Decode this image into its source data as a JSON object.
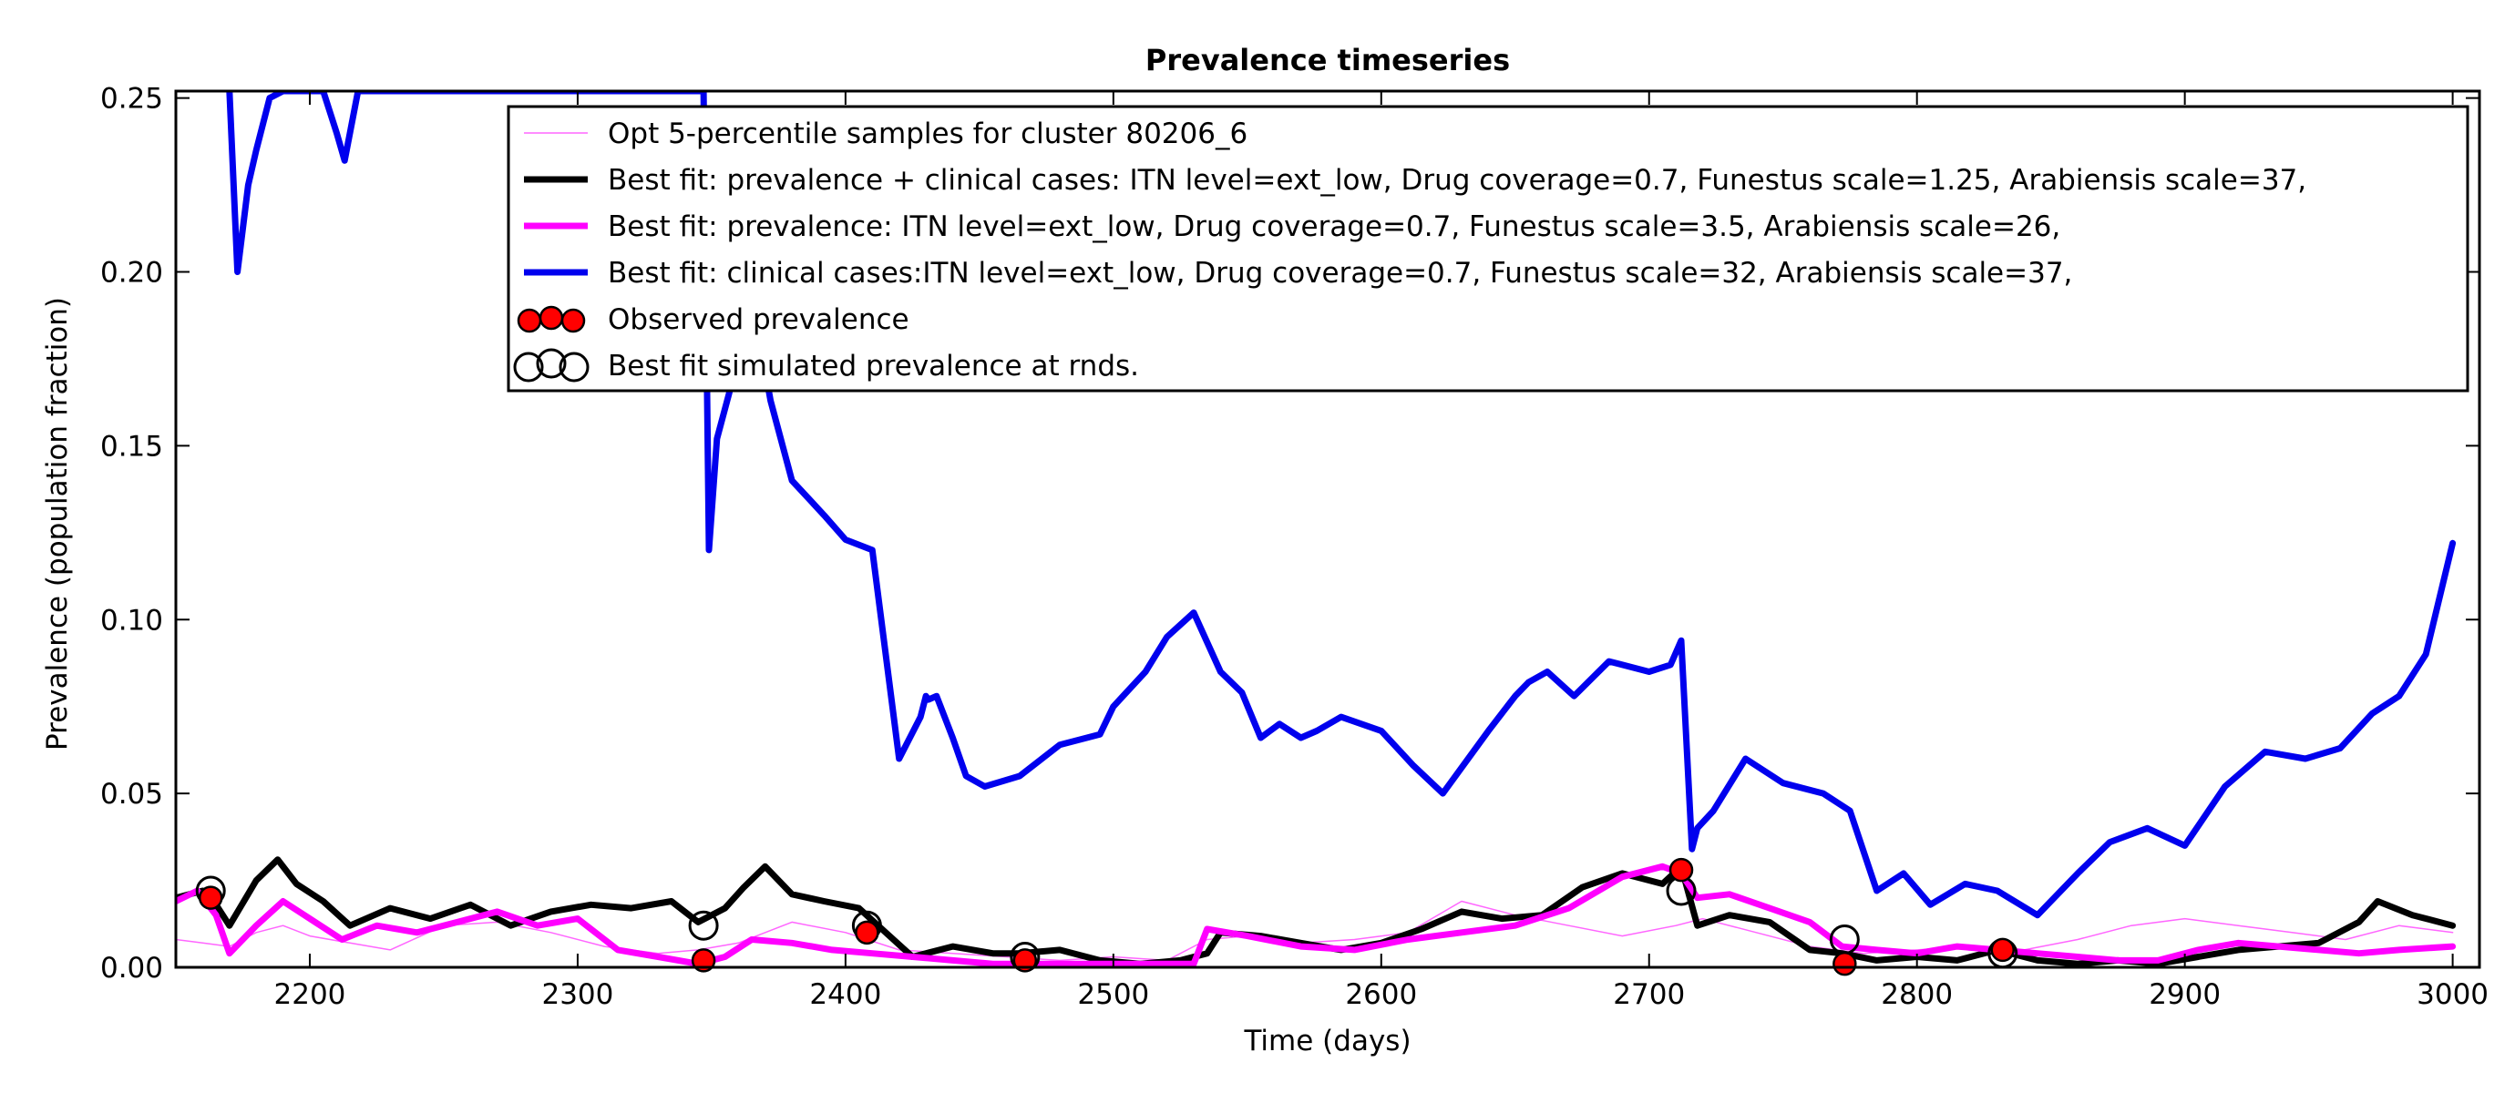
{
  "chart_data": {
    "type": "line",
    "title": "Prevalence timeseries",
    "xlabel": "Time (days)",
    "ylabel": "Prevalence (population fraction)",
    "xlim": [
      2150,
      3010
    ],
    "ylim": [
      0.0,
      0.252
    ],
    "xticks": [
      2200,
      2300,
      2400,
      2500,
      2600,
      2700,
      2800,
      2900,
      3000
    ],
    "xtick_labels": [
      "2200",
      "2300",
      "2400",
      "2500",
      "2600",
      "2700",
      "2800",
      "2900",
      "3000"
    ],
    "yticks": [
      0.0,
      0.05,
      0.1,
      0.15,
      0.2,
      0.25
    ],
    "ytick_labels": [
      "0.00",
      "0.05",
      "0.10",
      "0.15",
      "0.20",
      "0.25"
    ],
    "grid": false,
    "legend_placement": "top-right",
    "series": [
      {
        "name": "Opt 5-percentile samples for cluster 80206_6",
        "color": "#ff66ff",
        "style": "thin",
        "x": [
          2150,
          2160,
          2170,
          2180,
          2190,
          2200,
          2215,
          2230,
          2250,
          2270,
          2290,
          2310,
          2330,
          2345,
          2360,
          2380,
          2400,
          2420,
          2440,
          2460,
          2480,
          2500,
          2520,
          2535,
          2550,
          2570,
          2590,
          2610,
          2630,
          2650,
          2670,
          2690,
          2710,
          2720,
          2740,
          2760,
          2780,
          2800,
          2820,
          2840,
          2860,
          2880,
          2900,
          2920,
          2940,
          2960,
          2980,
          3000
        ],
        "y": [
          0.008,
          0.007,
          0.006,
          0.01,
          0.012,
          0.009,
          0.007,
          0.005,
          0.012,
          0.013,
          0.01,
          0.006,
          0.004,
          0.005,
          0.007,
          0.013,
          0.01,
          0.005,
          0.004,
          0.003,
          0.002,
          0.003,
          0.002,
          0.008,
          0.009,
          0.007,
          0.008,
          0.01,
          0.019,
          0.015,
          0.012,
          0.009,
          0.012,
          0.014,
          0.01,
          0.006,
          0.004,
          0.005,
          0.006,
          0.005,
          0.008,
          0.012,
          0.014,
          0.012,
          0.01,
          0.008,
          0.012,
          0.01
        ]
      },
      {
        "name": "Best fit: prevalence + clinical cases: ITN level=ext_low, Drug coverage=0.7, Funestus scale=1.25, Arabiensis scale=37,",
        "color": "#000000",
        "style": "thick",
        "x": [
          2150,
          2160,
          2165,
          2170,
          2180,
          2188,
          2195,
          2205,
          2215,
          2230,
          2245,
          2260,
          2275,
          2290,
          2305,
          2320,
          2335,
          2345,
          2355,
          2362,
          2370,
          2380,
          2392,
          2405,
          2415,
          2425,
          2440,
          2455,
          2465,
          2480,
          2495,
          2510,
          2525,
          2535,
          2540,
          2555,
          2570,
          2585,
          2600,
          2615,
          2630,
          2645,
          2660,
          2675,
          2690,
          2705,
          2712,
          2718,
          2730,
          2745,
          2760,
          2772,
          2785,
          2800,
          2815,
          2830,
          2845,
          2860,
          2875,
          2890,
          2905,
          2920,
          2935,
          2950,
          2965,
          2972,
          2985,
          3000
        ],
        "y": [
          0.02,
          0.022,
          0.018,
          0.012,
          0.025,
          0.031,
          0.024,
          0.019,
          0.012,
          0.017,
          0.014,
          0.018,
          0.012,
          0.016,
          0.018,
          0.017,
          0.019,
          0.013,
          0.017,
          0.023,
          0.029,
          0.021,
          0.019,
          0.017,
          0.01,
          0.003,
          0.006,
          0.004,
          0.004,
          0.005,
          0.002,
          0.001,
          0.002,
          0.004,
          0.01,
          0.009,
          0.007,
          0.005,
          0.007,
          0.011,
          0.016,
          0.014,
          0.015,
          0.023,
          0.027,
          0.024,
          0.029,
          0.012,
          0.015,
          0.013,
          0.005,
          0.004,
          0.002,
          0.003,
          0.002,
          0.005,
          0.002,
          0.001,
          0.002,
          0.001,
          0.003,
          0.005,
          0.006,
          0.007,
          0.013,
          0.019,
          0.015,
          0.012
        ]
      },
      {
        "name": "Best fit: prevalence: ITN level=ext_low, Drug coverage=0.7, Funestus scale=3.5, Arabiensis scale=26,",
        "color": "#ff00ff",
        "style": "thick",
        "x": [
          2150,
          2158,
          2165,
          2170,
          2180,
          2190,
          2200,
          2212,
          2225,
          2240,
          2255,
          2270,
          2285,
          2300,
          2315,
          2330,
          2345,
          2355,
          2365,
          2380,
          2395,
          2410,
          2425,
          2440,
          2455,
          2470,
          2490,
          2510,
          2530,
          2535,
          2550,
          2570,
          2590,
          2610,
          2630,
          2650,
          2670,
          2690,
          2705,
          2712,
          2718,
          2730,
          2745,
          2760,
          2772,
          2785,
          2800,
          2815,
          2830,
          2845,
          2860,
          2875,
          2890,
          2905,
          2920,
          2935,
          2950,
          2965,
          2980,
          3000
        ],
        "y": [
          0.019,
          0.022,
          0.015,
          0.004,
          0.012,
          0.019,
          0.014,
          0.008,
          0.012,
          0.01,
          0.013,
          0.016,
          0.012,
          0.014,
          0.005,
          0.003,
          0.001,
          0.003,
          0.008,
          0.007,
          0.005,
          0.004,
          0.003,
          0.002,
          0.001,
          0.001,
          0.001,
          0.001,
          0.001,
          0.011,
          0.009,
          0.006,
          0.005,
          0.008,
          0.01,
          0.012,
          0.017,
          0.026,
          0.029,
          0.027,
          0.02,
          0.021,
          0.017,
          0.013,
          0.006,
          0.005,
          0.004,
          0.006,
          0.005,
          0.004,
          0.003,
          0.002,
          0.002,
          0.005,
          0.007,
          0.006,
          0.005,
          0.004,
          0.005,
          0.006
        ]
      },
      {
        "name": "Best fit: clinical cases:ITN level=ext_low, Drug coverage=0.7, Funestus scale=32, Arabiensis scale=37,",
        "color": "#0000ee",
        "style": "thick",
        "x": [
          2170,
          2173,
          2177,
          2180,
          2185,
          2190,
          2195,
          2200,
          2205,
          2210,
          2213,
          2218,
          2222,
          2226,
          2235,
          2245,
          2260,
          2275,
          2290,
          2305,
          2320,
          2332,
          2340,
          2347,
          2349,
          2352,
          2360,
          2368,
          2372,
          2380,
          2392,
          2400,
          2410,
          2420,
          2428,
          2430,
          2431,
          2434,
          2440,
          2445,
          2452,
          2465,
          2480,
          2495,
          2500,
          2512,
          2520,
          2530,
          2540,
          2548,
          2555,
          2562,
          2570,
          2576,
          2585,
          2600,
          2612,
          2623,
          2640,
          2650,
          2655,
          2662,
          2672,
          2685,
          2700,
          2708,
          2712,
          2716,
          2718,
          2724,
          2736,
          2750,
          2765,
          2775,
          2785,
          2795,
          2805,
          2818,
          2830,
          2845,
          2860,
          2872,
          2886,
          2900,
          2915,
          2930,
          2945,
          2958,
          2970,
          2980,
          2990,
          3000
        ],
        "y": [
          0.252,
          0.2,
          0.225,
          0.235,
          0.25,
          0.252,
          0.252,
          0.252,
          0.252,
          0.24,
          0.232,
          0.252,
          0.252,
          0.252,
          0.252,
          0.252,
          0.252,
          0.252,
          0.252,
          0.252,
          0.252,
          0.252,
          0.252,
          0.252,
          0.12,
          0.152,
          0.175,
          0.18,
          0.163,
          0.14,
          0.13,
          0.123,
          0.12,
          0.06,
          0.072,
          0.078,
          0.077,
          0.078,
          0.066,
          0.055,
          0.052,
          0.055,
          0.064,
          0.067,
          0.075,
          0.085,
          0.095,
          0.102,
          0.085,
          0.079,
          0.066,
          0.07,
          0.066,
          0.068,
          0.072,
          0.068,
          0.058,
          0.05,
          0.068,
          0.078,
          0.082,
          0.085,
          0.078,
          0.088,
          0.085,
          0.087,
          0.094,
          0.034,
          0.04,
          0.045,
          0.06,
          0.053,
          0.05,
          0.045,
          0.022,
          0.027,
          0.018,
          0.024,
          0.022,
          0.015,
          0.027,
          0.036,
          0.04,
          0.035,
          0.052,
          0.062,
          0.06,
          0.063,
          0.073,
          0.078,
          0.09,
          0.122
        ]
      }
    ],
    "observed": {
      "name": "Observed prevalence",
      "color": "#ff0000",
      "x": [
        2163,
        2347,
        2408,
        2467,
        2712,
        2773,
        2832
      ],
      "y": [
        0.02,
        0.002,
        0.01,
        0.002,
        0.028,
        0.001,
        0.005
      ]
    },
    "simulated": {
      "name": "Best fit simulated prevalence at rnds.",
      "x": [
        2163,
        2347,
        2408,
        2467,
        2712,
        2773,
        2832
      ],
      "y": [
        0.022,
        0.012,
        0.012,
        0.003,
        0.022,
        0.008,
        0.004
      ]
    }
  }
}
